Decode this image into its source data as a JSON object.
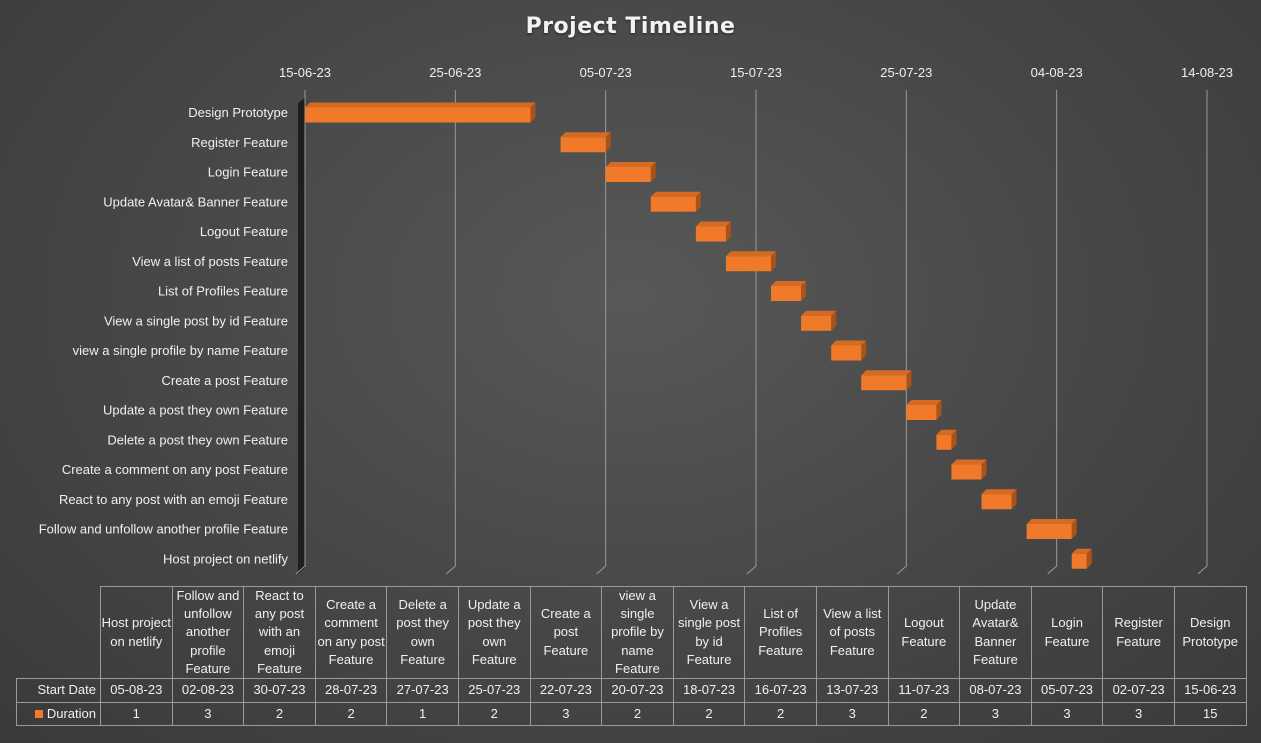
{
  "chart_data": {
    "type": "bar",
    "orientation": "horizontal-gantt",
    "title": "Project Timeline",
    "x_ticks": [
      "15-06-23",
      "25-06-23",
      "05-07-23",
      "15-07-23",
      "25-07-23",
      "04-08-23",
      "14-08-23"
    ],
    "xlim": [
      "15-06-23",
      "14-08-23"
    ],
    "grid": true,
    "bar_color": "#f07a2a",
    "legend": [
      "Duration"
    ],
    "tasks": [
      {
        "name": "Design Prototype",
        "start": "15-06-23",
        "duration": 15
      },
      {
        "name": "Register Feature",
        "start": "02-07-23",
        "duration": 3
      },
      {
        "name": "Login Feature",
        "start": "05-07-23",
        "duration": 3
      },
      {
        "name": "Update Avatar& Banner Feature",
        "start": "08-07-23",
        "duration": 3
      },
      {
        "name": "Logout Feature",
        "start": "11-07-23",
        "duration": 2
      },
      {
        "name": "View a list of posts Feature",
        "start": "13-07-23",
        "duration": 3
      },
      {
        "name": "List of Profiles Feature",
        "start": "16-07-23",
        "duration": 2
      },
      {
        "name": "View a single post by id Feature",
        "start": "18-07-23",
        "duration": 2
      },
      {
        "name": "view a single profile by name Feature",
        "start": "20-07-23",
        "duration": 2
      },
      {
        "name": "Create a post Feature",
        "start": "22-07-23",
        "duration": 3
      },
      {
        "name": "Update a post they own Feature",
        "start": "25-07-23",
        "duration": 2
      },
      {
        "name": "Delete a post they own Feature",
        "start": "27-07-23",
        "duration": 1
      },
      {
        "name": "Create a comment on any post Feature",
        "start": "28-07-23",
        "duration": 2
      },
      {
        "name": "React to any post with an emoji Feature",
        "start": "30-07-23",
        "duration": 2
      },
      {
        "name": "Follow and unfollow another profile Feature",
        "start": "02-08-23",
        "duration": 3
      },
      {
        "name": "Host project on netlify",
        "start": "05-08-23",
        "duration": 1
      }
    ]
  },
  "data_table": {
    "row_labels": [
      "Start Date",
      "Duration"
    ],
    "columns": [
      {
        "header": "Host project on netlify",
        "start": "05-08-23",
        "duration": "1"
      },
      {
        "header": "Follow and unfollow another profile Feature",
        "start": "02-08-23",
        "duration": "3"
      },
      {
        "header": "React to any post with an emoji Feature",
        "start": "30-07-23",
        "duration": "2"
      },
      {
        "header": "Create a comment on any post Feature",
        "start": "28-07-23",
        "duration": "2"
      },
      {
        "header": "Delete a post they own Feature",
        "start": "27-07-23",
        "duration": "1"
      },
      {
        "header": "Update a post they own Feature",
        "start": "25-07-23",
        "duration": "2"
      },
      {
        "header": "Create a post Feature",
        "start": "22-07-23",
        "duration": "3"
      },
      {
        "header": "view a single profile by name Feature",
        "start": "20-07-23",
        "duration": "2"
      },
      {
        "header": "View a single post by id Feature",
        "start": "18-07-23",
        "duration": "2"
      },
      {
        "header": "List of Profiles Feature",
        "start": "16-07-23",
        "duration": "2"
      },
      {
        "header": "View a list of posts Feature",
        "start": "13-07-23",
        "duration": "3"
      },
      {
        "header": "Logout Feature",
        "start": "11-07-23",
        "duration": "2"
      },
      {
        "header": "Update Avatar& Banner Feature",
        "start": "08-07-23",
        "duration": "3"
      },
      {
        "header": "Login Feature",
        "start": "05-07-23",
        "duration": "3"
      },
      {
        "header": "Register Feature",
        "start": "02-07-23",
        "duration": "3"
      },
      {
        "header": "Design Prototype",
        "start": "15-06-23",
        "duration": "15"
      }
    ]
  }
}
